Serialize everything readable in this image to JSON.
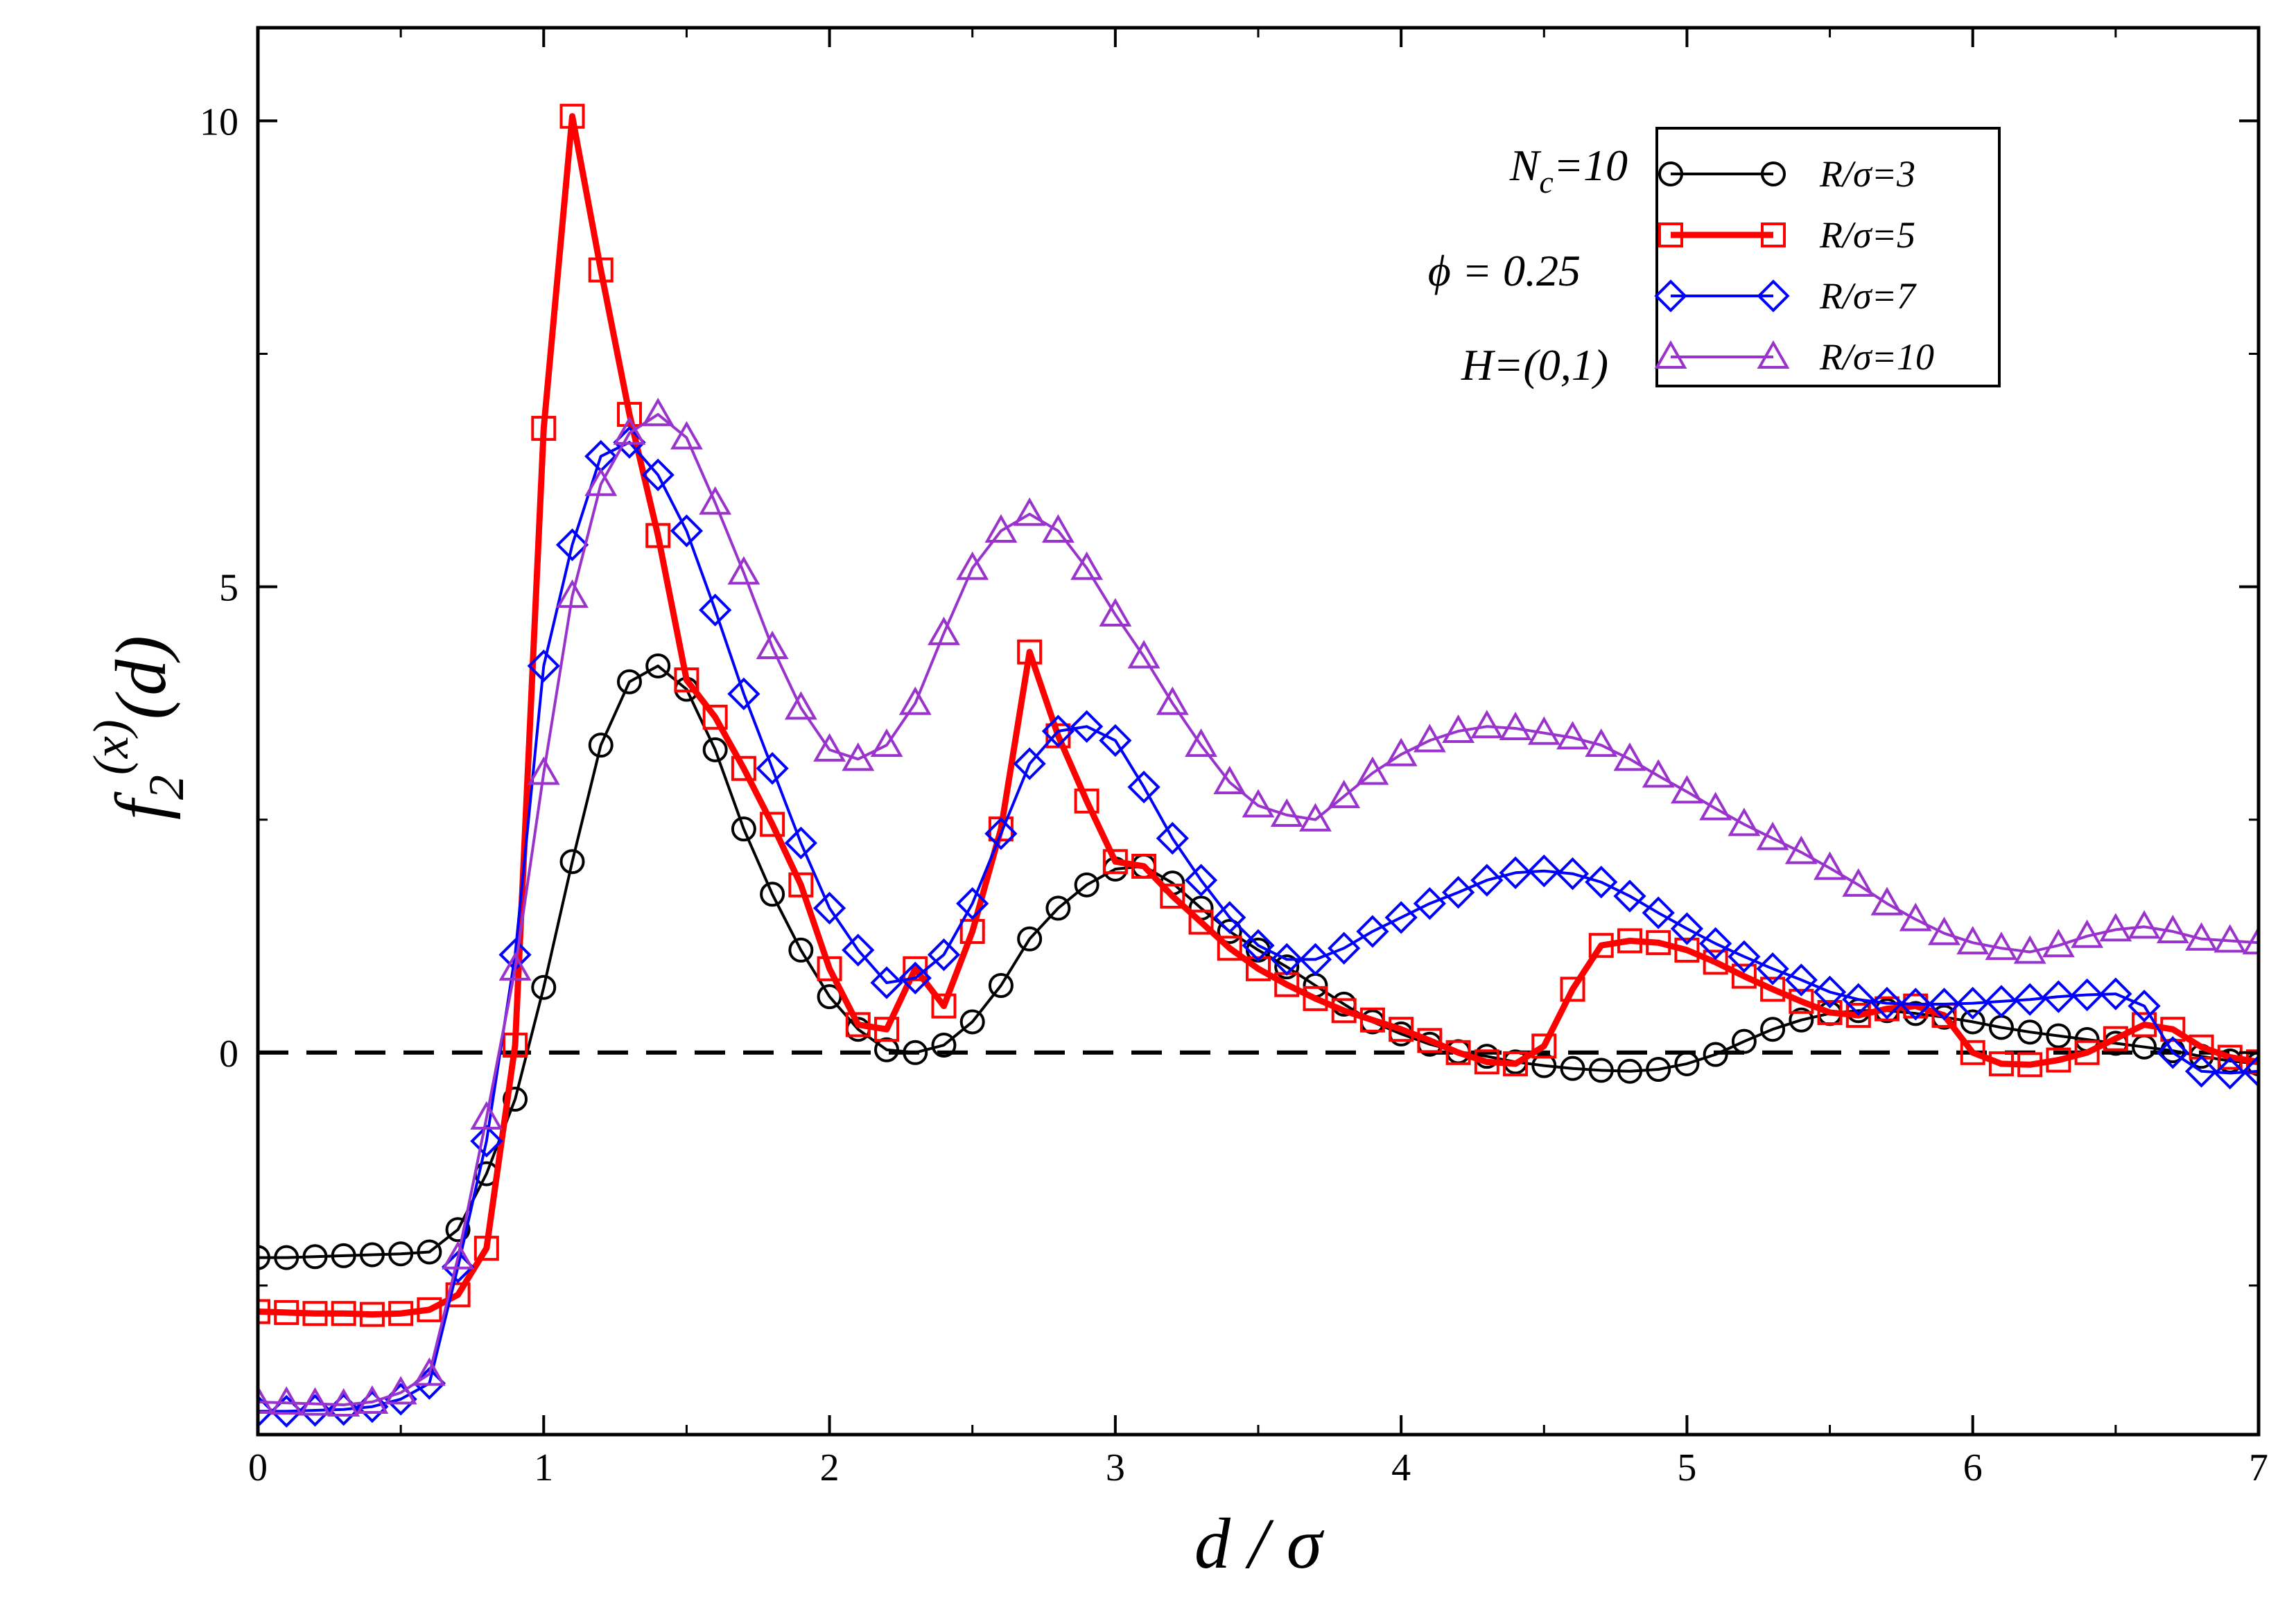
{
  "chart_data": {
    "type": "line",
    "xlabel": "d / σ",
    "ylabel_main": "f",
    "ylabel_sub": "2",
    "ylabel_sup": "(x)",
    "ylabel_arg": "(d)",
    "xlim": [
      0,
      7
    ],
    "ylim": [
      -4.1,
      11.0
    ],
    "xticks": [
      0,
      1,
      2,
      3,
      4,
      5,
      6,
      7
    ],
    "yticks": [
      0,
      5,
      10
    ],
    "xtick_labels": [
      "0",
      "1",
      "2",
      "3",
      "4",
      "5",
      "6",
      "7"
    ],
    "ytick_labels": [
      "0",
      "5",
      "10"
    ],
    "grid": false,
    "legend_position": "top-right",
    "annotations": {
      "nc_main": "N",
      "nc_sub": "c",
      "nc_value": "=10",
      "phi": "ϕ = 0.25",
      "h": "H=(0,1)"
    },
    "reference_line": {
      "y": 0,
      "style": "dashed",
      "color": "#000000"
    },
    "series": [
      {
        "name": "R/σ=3",
        "color": "#000000",
        "marker": "circle",
        "x": [
          0,
          0.1,
          0.2,
          0.3,
          0.4,
          0.5,
          0.6,
          0.7,
          0.8,
          0.9,
          1.0,
          1.1,
          1.2,
          1.3,
          1.4,
          1.5,
          1.6,
          1.7,
          1.8,
          1.9,
          2.0,
          2.1,
          2.2,
          2.3,
          2.4,
          2.5,
          2.6,
          2.7,
          2.8,
          2.9,
          3.0,
          3.1,
          3.2,
          3.3,
          3.4,
          3.5,
          3.6,
          3.7,
          3.8,
          3.9,
          4.0,
          4.1,
          4.2,
          4.3,
          4.4,
          4.5,
          4.6,
          4.7,
          4.8,
          4.9,
          5.0,
          5.1,
          5.2,
          5.3,
          5.4,
          5.5,
          5.6,
          5.7,
          5.8,
          5.9,
          6.0,
          6.1,
          6.2,
          6.3,
          6.4,
          6.5,
          6.6,
          6.7,
          6.8,
          6.9,
          7.0
        ],
        "y": [
          -2.2,
          -2.2,
          -2.19,
          -2.18,
          -2.17,
          -2.16,
          -2.14,
          -1.9,
          -1.3,
          -0.5,
          0.7,
          2.05,
          3.3,
          3.98,
          4.15,
          3.9,
          3.25,
          2.4,
          1.7,
          1.1,
          0.6,
          0.25,
          0.03,
          0.0,
          0.08,
          0.33,
          0.72,
          1.22,
          1.55,
          1.8,
          1.97,
          2.0,
          1.82,
          1.55,
          1.3,
          1.1,
          0.92,
          0.72,
          0.52,
          0.33,
          0.2,
          0.09,
          0.01,
          -0.04,
          -0.1,
          -0.14,
          -0.17,
          -0.19,
          -0.2,
          -0.18,
          -0.12,
          -0.02,
          0.12,
          0.25,
          0.35,
          0.42,
          0.45,
          0.45,
          0.42,
          0.38,
          0.33,
          0.27,
          0.22,
          0.18,
          0.14,
          0.1,
          0.06,
          0.02,
          -0.04,
          -0.09,
          -0.12
        ]
      },
      {
        "name": "R/σ=5",
        "color": "#ff0000",
        "marker": "square",
        "x": [
          0,
          0.1,
          0.2,
          0.3,
          0.4,
          0.5,
          0.6,
          0.7,
          0.8,
          0.9,
          1.0,
          1.1,
          1.2,
          1.3,
          1.4,
          1.5,
          1.6,
          1.7,
          1.8,
          1.9,
          2.0,
          2.1,
          2.2,
          2.3,
          2.4,
          2.5,
          2.6,
          2.7,
          2.8,
          2.9,
          3.0,
          3.1,
          3.2,
          3.3,
          3.4,
          3.5,
          3.6,
          3.7,
          3.8,
          3.9,
          4.0,
          4.1,
          4.2,
          4.3,
          4.4,
          4.5,
          4.6,
          4.7,
          4.8,
          4.9,
          5.0,
          5.1,
          5.2,
          5.3,
          5.4,
          5.5,
          5.6,
          5.7,
          5.8,
          5.9,
          6.0,
          6.1,
          6.2,
          6.3,
          6.4,
          6.5,
          6.6,
          6.7,
          6.8,
          6.9,
          7.0
        ],
        "y": [
          -2.78,
          -2.79,
          -2.8,
          -2.8,
          -2.81,
          -2.8,
          -2.76,
          -2.6,
          -2.1,
          0.08,
          6.7,
          10.05,
          8.4,
          6.85,
          5.55,
          4.0,
          3.6,
          3.05,
          2.45,
          1.8,
          0.9,
          0.3,
          0.25,
          0.9,
          0.5,
          1.3,
          2.4,
          4.3,
          3.4,
          2.7,
          2.05,
          2.0,
          1.68,
          1.4,
          1.12,
          0.9,
          0.73,
          0.58,
          0.45,
          0.35,
          0.25,
          0.13,
          0.0,
          -0.1,
          -0.12,
          0.07,
          0.68,
          1.15,
          1.2,
          1.18,
          1.1,
          0.97,
          0.82,
          0.68,
          0.55,
          0.43,
          0.4,
          0.47,
          0.5,
          0.4,
          0.0,
          -0.12,
          -0.13,
          -0.08,
          0.0,
          0.15,
          0.3,
          0.25,
          0.06,
          -0.05,
          -0.1
        ]
      },
      {
        "name": "R/σ=7",
        "color": "#0000ff",
        "marker": "diamond",
        "x": [
          0,
          0.1,
          0.2,
          0.3,
          0.4,
          0.5,
          0.6,
          0.7,
          0.8,
          0.9,
          1.0,
          1.1,
          1.2,
          1.3,
          1.4,
          1.5,
          1.6,
          1.7,
          1.8,
          1.9,
          2.0,
          2.1,
          2.2,
          2.3,
          2.4,
          2.5,
          2.6,
          2.7,
          2.8,
          2.9,
          3.0,
          3.1,
          3.2,
          3.3,
          3.4,
          3.5,
          3.6,
          3.7,
          3.8,
          3.9,
          4.0,
          4.1,
          4.2,
          4.3,
          4.4,
          4.5,
          4.6,
          4.7,
          4.8,
          4.9,
          5.0,
          5.1,
          5.2,
          5.3,
          5.4,
          5.5,
          5.6,
          5.7,
          5.8,
          5.9,
          6.0,
          6.1,
          6.2,
          6.3,
          6.4,
          6.5,
          6.6,
          6.7,
          6.8,
          6.9,
          7.0
        ],
        "y": [
          -3.85,
          -3.85,
          -3.84,
          -3.83,
          -3.8,
          -3.72,
          -3.55,
          -2.3,
          -0.95,
          1.05,
          4.15,
          5.45,
          6.4,
          6.55,
          6.2,
          5.6,
          4.75,
          3.85,
          3.05,
          2.25,
          1.55,
          1.1,
          0.75,
          0.8,
          1.05,
          1.6,
          2.35,
          3.1,
          3.45,
          3.5,
          3.35,
          2.85,
          2.3,
          1.85,
          1.45,
          1.15,
          1.0,
          1.0,
          1.12,
          1.3,
          1.45,
          1.6,
          1.72,
          1.85,
          1.93,
          1.95,
          1.92,
          1.83,
          1.68,
          1.5,
          1.33,
          1.17,
          1.03,
          0.9,
          0.78,
          0.65,
          0.57,
          0.53,
          0.52,
          0.52,
          0.53,
          0.55,
          0.57,
          0.6,
          0.62,
          0.63,
          0.5,
          0.0,
          -0.2,
          -0.22,
          -0.2
        ]
      },
      {
        "name": "R/σ=10",
        "color": "#9933cc",
        "marker": "triangle",
        "x": [
          0,
          0.1,
          0.2,
          0.3,
          0.4,
          0.5,
          0.6,
          0.7,
          0.8,
          0.9,
          1.0,
          1.1,
          1.2,
          1.3,
          1.4,
          1.5,
          1.6,
          1.7,
          1.8,
          1.9,
          2.0,
          2.1,
          2.2,
          2.3,
          2.4,
          2.5,
          2.6,
          2.7,
          2.8,
          2.9,
          3.0,
          3.1,
          3.2,
          3.3,
          3.4,
          3.5,
          3.6,
          3.7,
          3.8,
          3.9,
          4.0,
          4.1,
          4.2,
          4.3,
          4.4,
          4.5,
          4.6,
          4.7,
          4.8,
          4.9,
          5.0,
          5.1,
          5.2,
          5.3,
          5.4,
          5.5,
          5.6,
          5.7,
          5.8,
          5.9,
          6.0,
          6.1,
          6.2,
          6.3,
          6.4,
          6.5,
          6.6,
          6.7,
          6.8,
          6.9,
          7.0
        ],
        "y": [
          -3.75,
          -3.76,
          -3.77,
          -3.78,
          -3.75,
          -3.65,
          -3.45,
          -2.2,
          -0.7,
          0.9,
          3.0,
          4.9,
          6.1,
          6.65,
          6.85,
          6.6,
          5.9,
          5.15,
          4.35,
          3.7,
          3.25,
          3.15,
          3.3,
          3.75,
          4.5,
          5.2,
          5.6,
          5.78,
          5.6,
          5.2,
          4.7,
          4.25,
          3.75,
          3.3,
          2.9,
          2.65,
          2.55,
          2.5,
          2.75,
          3.0,
          3.2,
          3.35,
          3.45,
          3.5,
          3.48,
          3.43,
          3.38,
          3.3,
          3.15,
          2.97,
          2.8,
          2.62,
          2.45,
          2.3,
          2.15,
          1.98,
          1.8,
          1.6,
          1.43,
          1.28,
          1.18,
          1.12,
          1.08,
          1.15,
          1.25,
          1.32,
          1.35,
          1.3,
          1.22,
          1.2,
          1.18
        ]
      }
    ]
  }
}
